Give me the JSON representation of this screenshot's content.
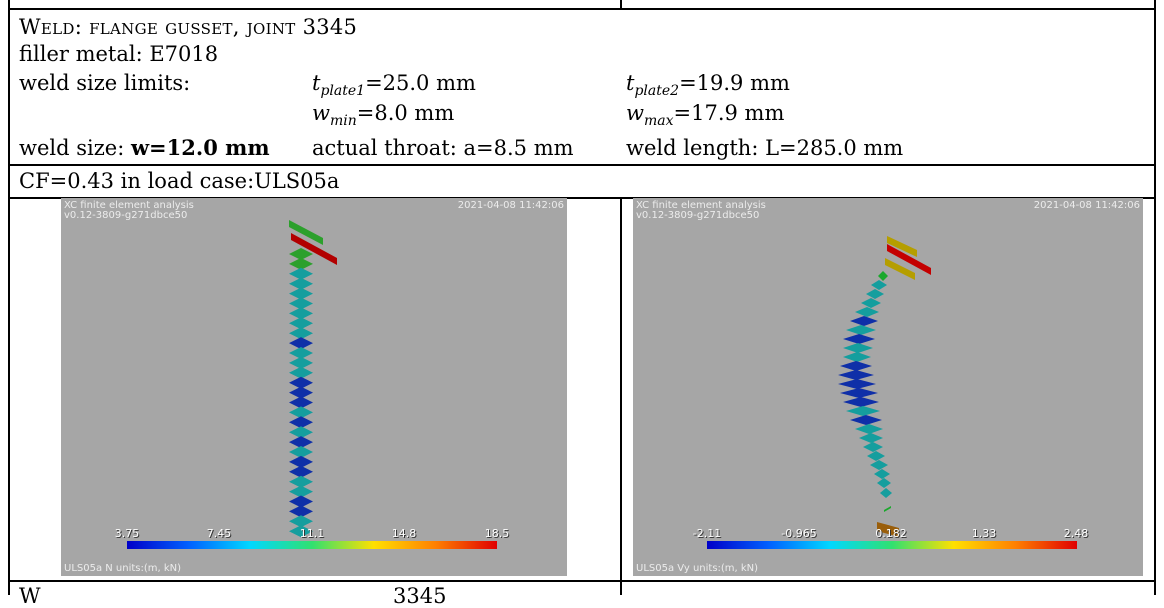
{
  "weld": {
    "title": "Weld: flange gusset, joint 3345",
    "filler_metal": "filler metal: E7018",
    "size_limits_label": "weld size limits:",
    "t_plate1": {
      "base": "t",
      "sub": "plate1",
      "rest": "=25.0 mm"
    },
    "t_plate2": {
      "base": "t",
      "sub": "plate2",
      "rest": "=19.9 mm"
    },
    "w_min": {
      "base": "w",
      "sub": "min",
      "rest": "=8.0 mm"
    },
    "w_max": {
      "base": "w",
      "sub": "max",
      "rest": "=17.9 mm"
    },
    "weld_size_label": "weld size: ",
    "weld_size_value": "w=12.0 mm",
    "throat": "actual throat: a=8.5 mm",
    "length": "weld length: L=285.0 mm",
    "cf_line": "CF=0.43 in load case:ULS05a"
  },
  "panels": [
    {
      "header_left_1": "XC finite element analysis",
      "header_left_2": "v0.12-3809-g271dbce50",
      "timestamp": "2021-04-08 11:42:06",
      "footer": "ULS05a N units:(m, kN)",
      "scale_labels": [
        "3.75",
        "7.45",
        "11.1",
        "14.8",
        "18.5"
      ],
      "colors": {
        "green": "#2ca02c",
        "red": "#b20000",
        "teal": "#159e9e",
        "blue": "#0f2fa8"
      }
    },
    {
      "header_left_1": "XC finite element analysis",
      "header_left_2": "v0.12-3809-g271dbce50",
      "timestamp": "2021-04-08 11:42:06",
      "footer": "ULS05a Vy units:(m, kN)",
      "scale_labels": [
        "-2.11",
        "-0.965",
        "0.182",
        "1.33",
        "2.48"
      ],
      "colors": {
        "olive": "#b59e00",
        "red": "#c40000",
        "green": "#1aa82c",
        "teal": "#159e9e",
        "blue": "#0f2fa8",
        "brown": "#9a5e0a"
      }
    }
  ],
  "next_row_fragment": {
    "start": "W",
    "end": "3345"
  }
}
